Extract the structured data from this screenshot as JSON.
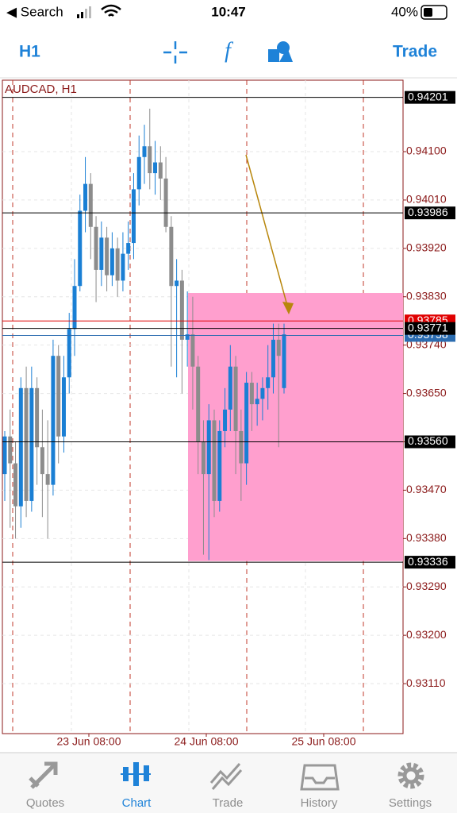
{
  "status_bar": {
    "back": "◀ Search",
    "time": "10:47",
    "battery": "40%"
  },
  "toolbar": {
    "timeframe": "H1",
    "trade": "Trade"
  },
  "chart": {
    "symbol": "AUDCAD, H1",
    "ylim": [
      0.93017,
      0.94233
    ],
    "price_ticks": [
      {
        "value": 0.941,
        "label": "0.94100"
      },
      {
        "value": 0.9401,
        "label": "0.94010"
      },
      {
        "value": 0.9392,
        "label": "0.93920"
      },
      {
        "value": 0.9383,
        "label": "0.93830"
      },
      {
        "value": 0.9374,
        "label": "0.93740"
      },
      {
        "value": 0.9365,
        "label": "0.93650"
      },
      {
        "value": 0.9356,
        "label": "0.93560"
      },
      {
        "value": 0.9347,
        "label": "0.93470"
      },
      {
        "value": 0.9338,
        "label": "0.93380"
      },
      {
        "value": 0.9329,
        "label": "0.93290"
      },
      {
        "value": 0.932,
        "label": "0.93200"
      },
      {
        "value": 0.9311,
        "label": "0.93110"
      }
    ],
    "levels": [
      {
        "value": 0.94201,
        "label": "0.94201",
        "color": "#000000"
      },
      {
        "value": 0.93986,
        "label": "0.93986",
        "color": "#000000"
      },
      {
        "value": 0.93758,
        "label": "0.93758",
        "color": "#2b6cb0"
      },
      {
        "value": 0.93785,
        "label": "0.93785",
        "color": "#e00000"
      },
      {
        "value": 0.93771,
        "label": "0.93771",
        "color": "#000000"
      },
      {
        "value": 0.9356,
        "label": "0.93560",
        "color": "#000000"
      },
      {
        "value": 0.93336,
        "label": "0.93336",
        "color": "#000000"
      }
    ],
    "x_labels": [
      "23 Jun 08:00",
      "24 Jun 08:00",
      "25 Jun 08:00"
    ],
    "rectangle": {
      "top": 0.93837,
      "bottom": 0.93338,
      "color": "#ff9fce"
    },
    "up_color": "#1a7fd4",
    "down_color": "#8c8c8c",
    "candles": [
      [
        0.935,
        0.9358,
        0.9345,
        0.9357
      ],
      [
        0.9357,
        0.9362,
        0.934,
        0.9352
      ],
      [
        0.9352,
        0.9356,
        0.9338,
        0.9344
      ],
      [
        0.9344,
        0.9368,
        0.934,
        0.9366
      ],
      [
        0.9366,
        0.937,
        0.9342,
        0.9345
      ],
      [
        0.9345,
        0.937,
        0.9343,
        0.9366
      ],
      [
        0.9366,
        0.9368,
        0.9348,
        0.9355
      ],
      [
        0.9355,
        0.9362,
        0.9342,
        0.935
      ],
      [
        0.935,
        0.936,
        0.9338,
        0.9348
      ],
      [
        0.9348,
        0.9375,
        0.9346,
        0.9372
      ],
      [
        0.9372,
        0.9374,
        0.9352,
        0.9357
      ],
      [
        0.9357,
        0.9372,
        0.9354,
        0.9368
      ],
      [
        0.9368,
        0.938,
        0.9365,
        0.9377
      ],
      [
        0.9377,
        0.939,
        0.9372,
        0.9385
      ],
      [
        0.9385,
        0.9402,
        0.9384,
        0.9399
      ],
      [
        0.9399,
        0.9409,
        0.9395,
        0.9404
      ],
      [
        0.9404,
        0.9406,
        0.939,
        0.9396
      ],
      [
        0.9396,
        0.9398,
        0.9382,
        0.9388
      ],
      [
        0.9388,
        0.9397,
        0.9385,
        0.9394
      ],
      [
        0.9394,
        0.9396,
        0.9384,
        0.9387
      ],
      [
        0.9387,
        0.9395,
        0.9385,
        0.9392
      ],
      [
        0.9392,
        0.9394,
        0.9383,
        0.9386
      ],
      [
        0.9386,
        0.9395,
        0.9384,
        0.9391
      ],
      [
        0.9391,
        0.9397,
        0.9388,
        0.9393
      ],
      [
        0.9393,
        0.9406,
        0.939,
        0.9403
      ],
      [
        0.9403,
        0.9413,
        0.94,
        0.9409
      ],
      [
        0.9409,
        0.9415,
        0.9404,
        0.9411
      ],
      [
        0.9411,
        0.9418,
        0.9403,
        0.9406
      ],
      [
        0.9406,
        0.9412,
        0.9402,
        0.9408
      ],
      [
        0.9408,
        0.9411,
        0.9401,
        0.9405
      ],
      [
        0.9405,
        0.9409,
        0.9395,
        0.9396
      ],
      [
        0.9396,
        0.9398,
        0.937,
        0.9385
      ],
      [
        0.9385,
        0.939,
        0.9368,
        0.9386
      ],
      [
        0.9386,
        0.9388,
        0.9365,
        0.9375
      ],
      [
        0.9375,
        0.9384,
        0.937,
        0.9376
      ],
      [
        0.9376,
        0.9383,
        0.9362,
        0.937
      ],
      [
        0.937,
        0.9372,
        0.935,
        0.9356
      ],
      [
        0.9356,
        0.936,
        0.9335,
        0.935
      ],
      [
        0.935,
        0.9363,
        0.9334,
        0.936
      ],
      [
        0.936,
        0.9362,
        0.9342,
        0.9345
      ],
      [
        0.9345,
        0.936,
        0.9343,
        0.9358
      ],
      [
        0.9358,
        0.9366,
        0.9355,
        0.9362
      ],
      [
        0.9362,
        0.9374,
        0.9358,
        0.937
      ],
      [
        0.937,
        0.9372,
        0.935,
        0.9358
      ],
      [
        0.9358,
        0.9362,
        0.9345,
        0.9352
      ],
      [
        0.9352,
        0.9369,
        0.9348,
        0.9367
      ],
      [
        0.9367,
        0.9369,
        0.9358,
        0.9363
      ],
      [
        0.9363,
        0.9367,
        0.9359,
        0.9364
      ],
      [
        0.9364,
        0.9368,
        0.936,
        0.9366
      ],
      [
        0.9366,
        0.9374,
        0.9362,
        0.9368
      ],
      [
        0.9368,
        0.9378,
        0.9365,
        0.9375
      ],
      [
        0.9375,
        0.9378,
        0.9355,
        0.9372
      ],
      [
        0.9366,
        0.9378,
        0.9365,
        0.9376
      ]
    ]
  },
  "tabs": [
    "Quotes",
    "Chart",
    "Trade",
    "History",
    "Settings"
  ],
  "active_tab": 1
}
